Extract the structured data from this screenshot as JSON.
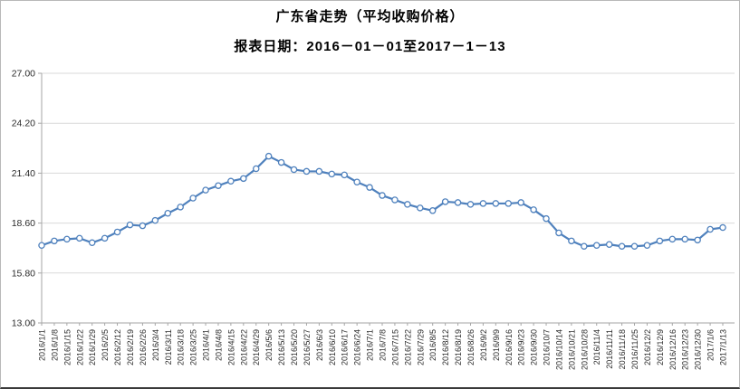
{
  "header": {
    "title": "广东省走势（平均收购价格）",
    "subtitle": "报表日期：2016－01－01至2017－1－13"
  },
  "chart_data": {
    "type": "line",
    "title": "广东省走势（平均收购价格）",
    "subtitle": "报表日期：2016－01－01至2017－1－13",
    "xlabel": "",
    "ylabel": "",
    "ylim": [
      13.0,
      27.0
    ],
    "yticks": [
      13.0,
      15.8,
      18.6,
      21.4,
      24.2,
      27.0
    ],
    "ytick_labels": [
      "13.00",
      "15.80",
      "18.60",
      "21.40",
      "24.20",
      "27.00"
    ],
    "grid": true,
    "legend_position": "none",
    "marker": "circle",
    "categories": [
      "2016/1/1",
      "2016/1/8",
      "2016/1/15",
      "2016/1/22",
      "2016/1/29",
      "2016/2/5",
      "2016/2/12",
      "2016/2/19",
      "2016/2/26",
      "2016/3/4",
      "2016/3/11",
      "2016/3/18",
      "2016/3/25",
      "2016/4/1",
      "2016/4/8",
      "2016/4/15",
      "2016/4/22",
      "2016/4/29",
      "2016/5/6",
      "2016/5/13",
      "2016/5/20",
      "2016/5/27",
      "2016/6/3",
      "2016/6/10",
      "2016/6/17",
      "2016/6/24",
      "2016/7/1",
      "2016/7/8",
      "2016/7/15",
      "2016/7/22",
      "2016/7/29",
      "2016/8/5",
      "2016/8/12",
      "2016/8/19",
      "2016/8/26",
      "2016/9/2",
      "2016/9/9",
      "2016/9/16",
      "2016/9/23",
      "2016/9/30",
      "2016/10/7",
      "2016/10/14",
      "2016/10/21",
      "2016/10/28",
      "2016/11/4",
      "2016/11/11",
      "2016/11/18",
      "2016/11/25",
      "2016/12/2",
      "2016/12/9",
      "2016/12/16",
      "2016/12/23",
      "2016/12/30",
      "2017/1/6",
      "2017/1/13"
    ],
    "series": [
      {
        "name": "平均收购价格",
        "color": "#4f81bd",
        "values": [
          17.35,
          17.6,
          17.7,
          17.75,
          17.5,
          17.75,
          18.1,
          18.5,
          18.45,
          18.75,
          19.15,
          19.5,
          20.0,
          20.45,
          20.7,
          20.95,
          21.1,
          21.65,
          22.35,
          22.0,
          21.6,
          21.5,
          21.5,
          21.35,
          21.3,
          20.9,
          20.6,
          20.15,
          19.9,
          19.65,
          19.45,
          19.3,
          19.8,
          19.75,
          19.65,
          19.7,
          19.7,
          19.7,
          19.75,
          19.35,
          18.85,
          18.05,
          17.6,
          17.3,
          17.35,
          17.4,
          17.3,
          17.3,
          17.35,
          17.6,
          17.7,
          17.7,
          17.65,
          18.25,
          18.35
        ]
      }
    ]
  },
  "style": {
    "line_color": "#4f81bd",
    "marker_fill": "#ffffff",
    "gridline_color": "#d9d9d9",
    "axis_color": "#a6a6a6",
    "tick_label_color": "#2b2b2b"
  }
}
